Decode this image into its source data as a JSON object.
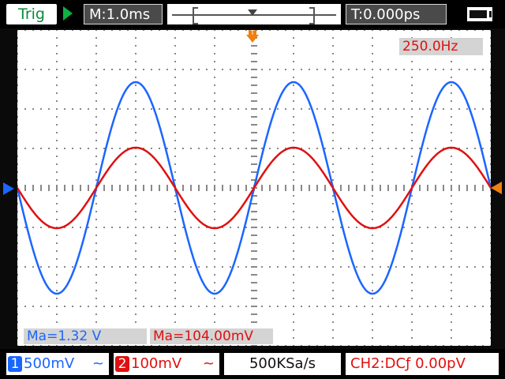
{
  "header": {
    "trigger_label": "Trig",
    "run_state_icon": "play-icon",
    "timebase": "M:1.0ms",
    "trigger_time": "T:0.000ps",
    "battery_icon": "battery-icon"
  },
  "screen": {
    "frequency": "250.0Hz",
    "trigger_marker_label": "T",
    "measurements": {
      "ch1": "Ma=1.32 V",
      "ch2": "Ma=104.00mV"
    }
  },
  "footer": {
    "ch1": {
      "number": "1",
      "scale": "500mV",
      "coupling": "~"
    },
    "ch2": {
      "number": "2",
      "scale": "100mV",
      "coupling": "~"
    },
    "sample_rate": "500KSa/s",
    "trigger_info": "CH2:DCƒ  0.00pV"
  },
  "colors": {
    "ch1": "#1a66ff",
    "ch2": "#e01010",
    "trigger": "#f08010",
    "grid": "#888888"
  },
  "chart_data": {
    "type": "line",
    "xlabel": "",
    "ylabel": "",
    "grid": true,
    "x_unit": "ms",
    "x": [
      0,
      1,
      2,
      3,
      4,
      5,
      6,
      7,
      8,
      9,
      10,
      11,
      12
    ],
    "xlim": [
      0,
      12
    ],
    "series": [
      {
        "name": "CH1",
        "amplitude_divisions": 2.68,
        "period_ms": 4.0,
        "phase_start": "falling",
        "color": "#1a66ff"
      },
      {
        "name": "CH2",
        "amplitude_divisions": 1.02,
        "period_ms": 4.0,
        "phase_start": "falling",
        "color": "#e01010"
      }
    ]
  }
}
